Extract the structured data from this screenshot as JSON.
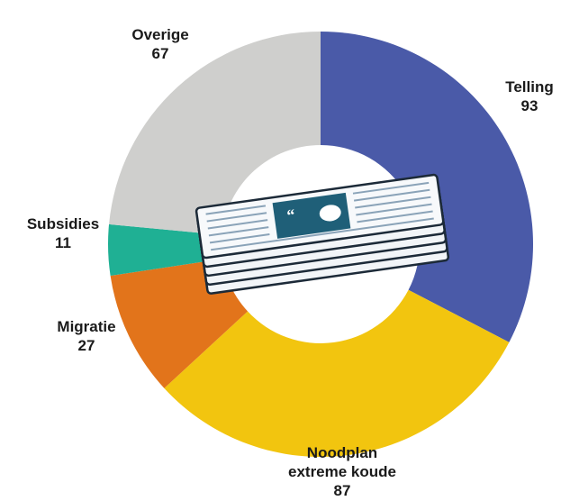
{
  "chart_data": {
    "type": "pie",
    "donut": true,
    "start": "top",
    "direction": "clockwise",
    "title": "",
    "total": 285,
    "slices": [
      {
        "name": "Telling",
        "value": 93,
        "value_label": "93",
        "color": "#4a5aa8"
      },
      {
        "name": "Noodplan extreme koude",
        "value": 87,
        "value_label": "87",
        "color": "#f2c50f"
      },
      {
        "name": "Migratie",
        "value": 27,
        "value_label": "27",
        "color": "#e2741b"
      },
      {
        "name": "Subsidies",
        "value": 11,
        "value_label": "11",
        "color": "#1fb094"
      },
      {
        "name": "Overige",
        "value": 67,
        "value_label": "67",
        "color": "#cfcfcd"
      }
    ],
    "center_icon": "newspaper-stack-icon"
  },
  "labels": {
    "telling": {
      "name": "Telling",
      "value": "93"
    },
    "noodplan": {
      "line1": "Noodplan",
      "line2": "extreme koude",
      "value": "87"
    },
    "migratie": {
      "name": "Migratie",
      "value": "27"
    },
    "subsidies": {
      "name": "Subsidies",
      "value": "11"
    },
    "overige": {
      "name": "Overige",
      "value": "67"
    }
  }
}
